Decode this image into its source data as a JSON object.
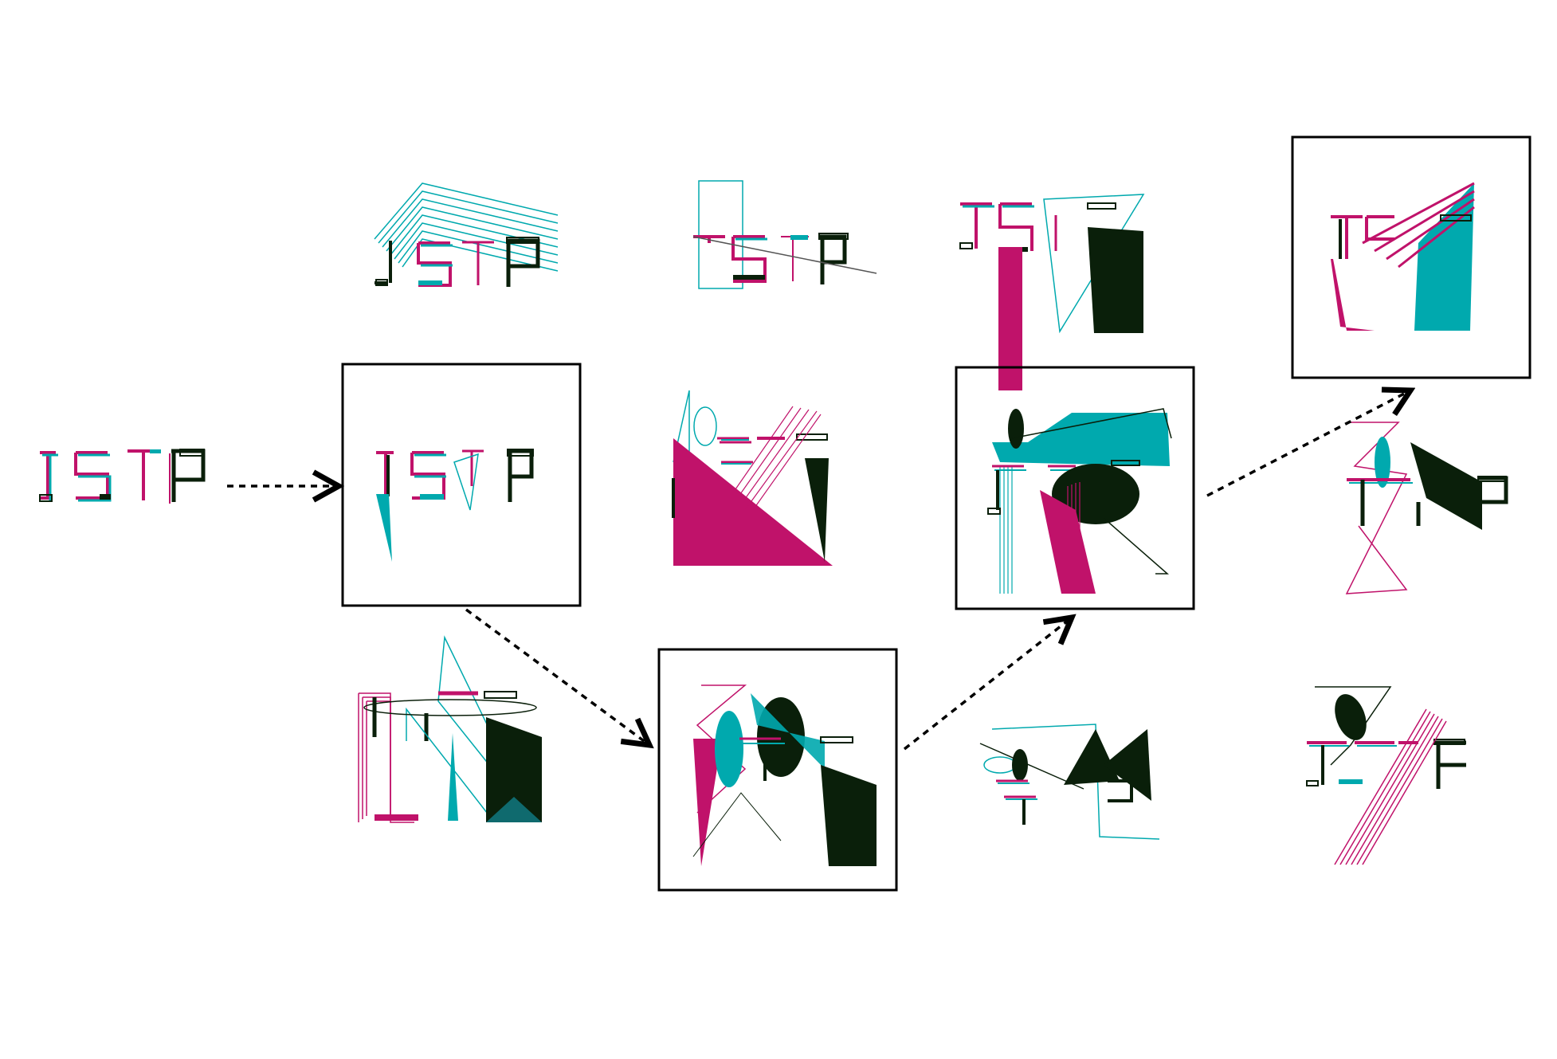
{
  "diagram": {
    "word": "ISTP",
    "colors": {
      "magenta": "#c0126a",
      "teal": "#00a9ae",
      "black": "#0a1f0a",
      "frame": "#000000",
      "arrow": "#000000",
      "background": "#ffffff"
    },
    "selected_path": [
      "source",
      "gen1-middle",
      "gen2-bottom",
      "gen3-middle",
      "gen4-top"
    ],
    "generations": [
      {
        "id": "source",
        "variants": [
          "source"
        ]
      },
      {
        "id": "gen1",
        "variants": [
          "gen1-top",
          "gen1-middle",
          "gen1-bottom"
        ]
      },
      {
        "id": "gen2",
        "variants": [
          "gen2-top",
          "gen2-middle",
          "gen2-bottom"
        ]
      },
      {
        "id": "gen3",
        "variants": [
          "gen3-top",
          "gen3-middle",
          "gen3-bottom"
        ]
      },
      {
        "id": "gen4",
        "variants": [
          "gen4-top",
          "gen4-middle",
          "gen4-bottom"
        ]
      }
    ]
  }
}
